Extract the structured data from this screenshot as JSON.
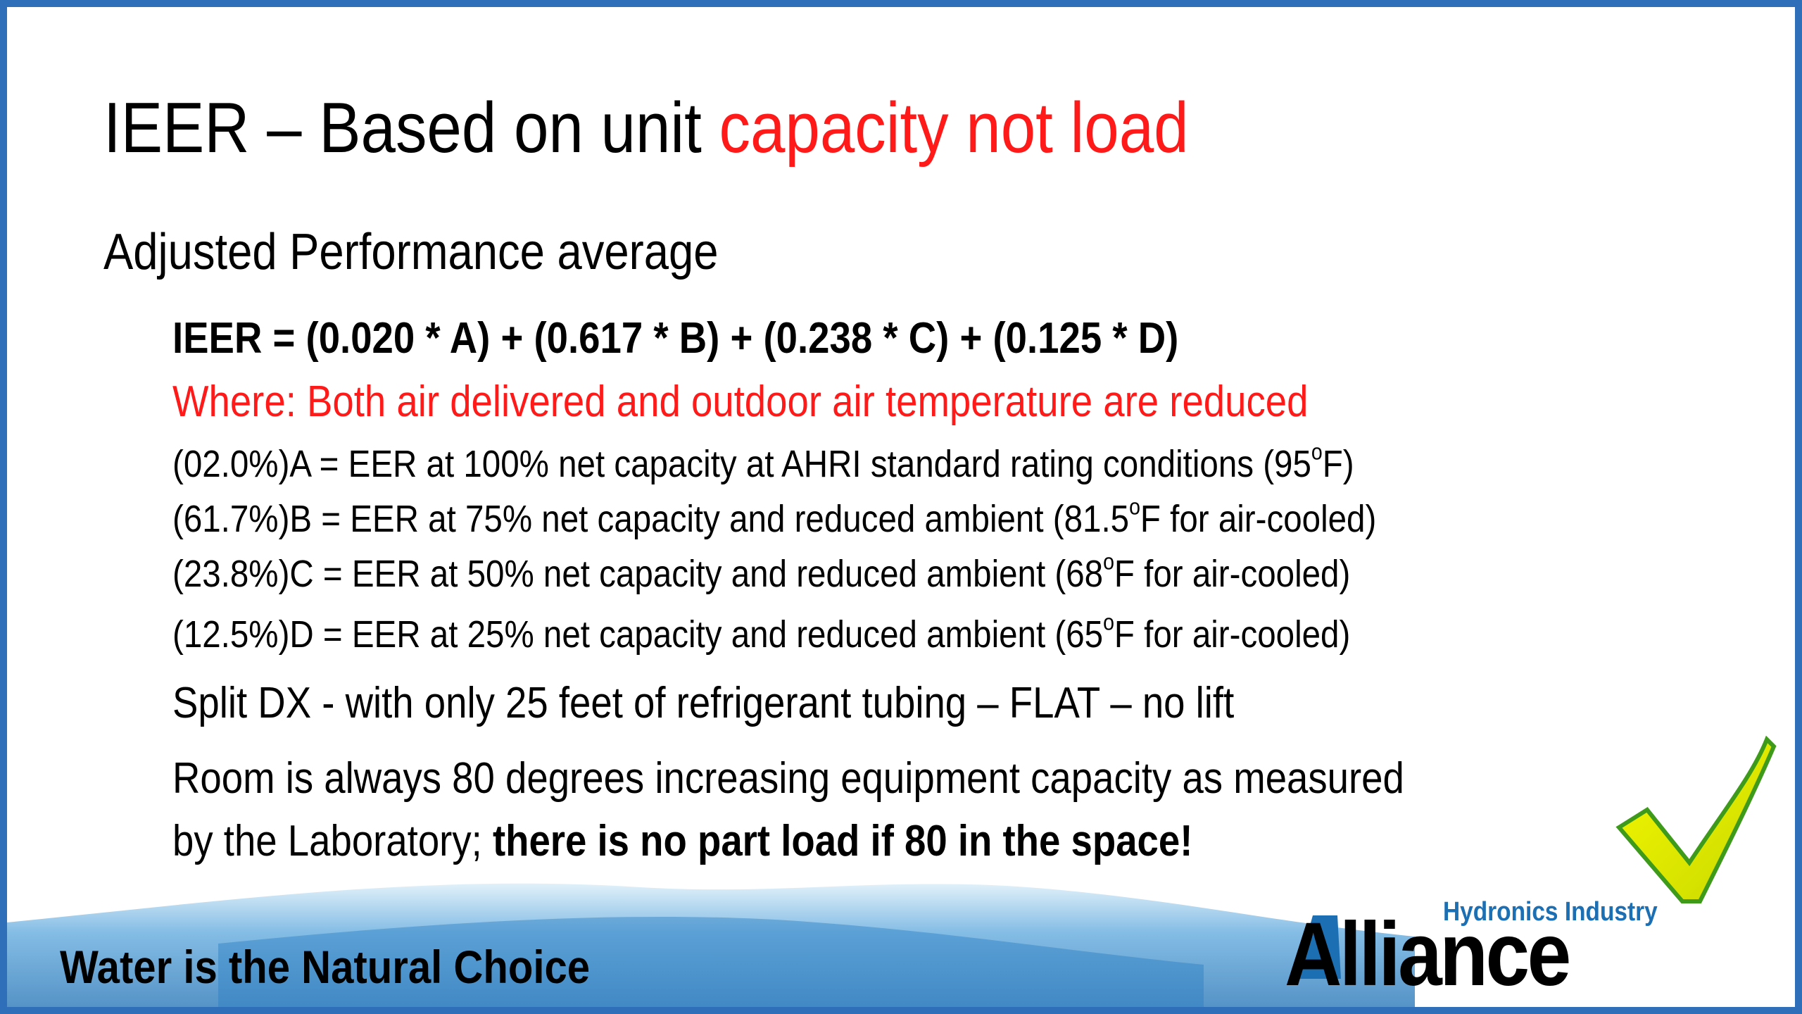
{
  "title": {
    "prefix": "IEER – Based on unit ",
    "highlight": "capacity not load"
  },
  "subtitle": "Adjusted Performance average",
  "formula": "IEER = (0.020 * A) + (0.617 * B) + (0.238 * C) + (0.125 * D)",
  "where": "Where: Both air delivered and outdoor air temperature are reduced",
  "definitions": [
    {
      "before": "(02.0%)A = EER at 100% net capacity at AHRI standard rating conditions (95",
      "sup": "o",
      "after": "F)"
    },
    {
      "before": "(61.7%)B = EER at 75% net capacity and reduced ambient (81.5",
      "sup": "o",
      "after": "F for air-cooled)"
    },
    {
      "before": "(23.8%)C = EER at 50% net capacity and reduced ambient (68",
      "sup": "o",
      "after": "F for air-cooled)"
    },
    {
      "before": "(12.5%)D = EER at 25% net capacity and reduced ambient (65",
      "sup": "o",
      "after": "F for air-cooled)"
    }
  ],
  "split_note": "Split DX - with only 25 feet of refrigerant tubing – FLAT – no lift",
  "room_note": {
    "line1": "Room is always 80 degrees increasing equipment capacity as measured",
    "line2": "by the Laboratory; ",
    "emphasis": "there is no part load if 80 in the space!"
  },
  "footer": {
    "tagline": "Water is the Natural Choice",
    "logo_small": "Hydronics Industry",
    "logo_big": "Alliance"
  }
}
